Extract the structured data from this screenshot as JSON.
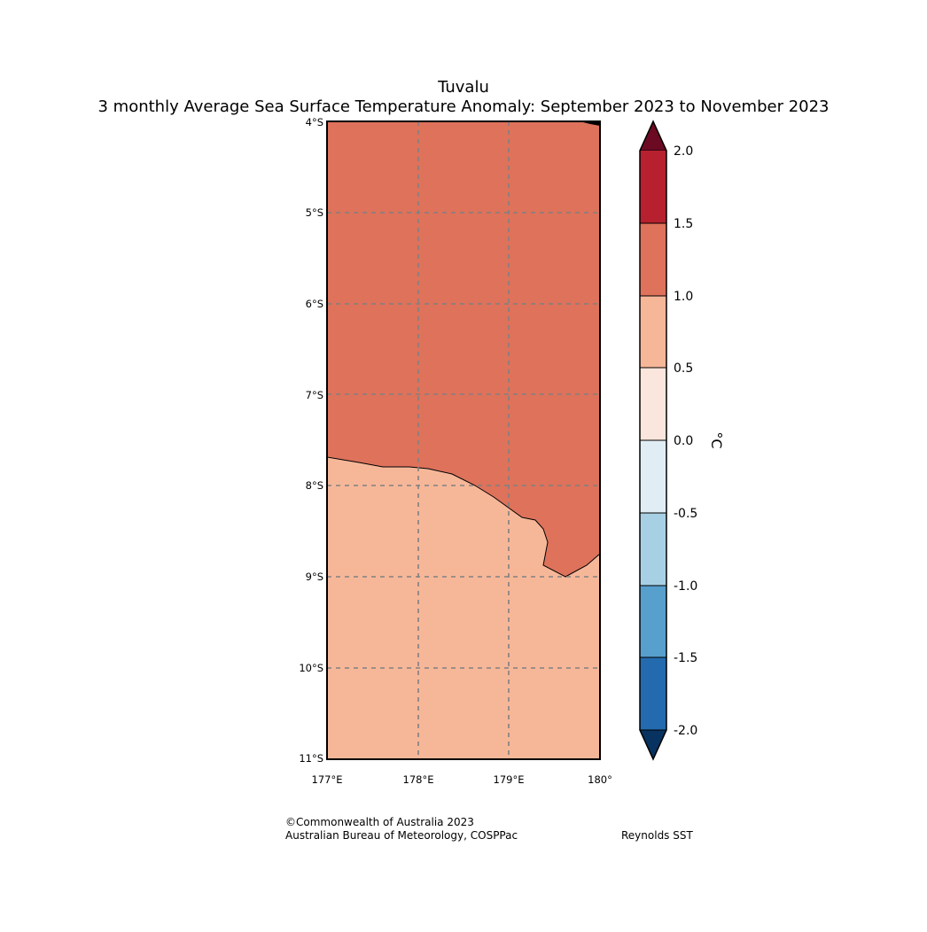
{
  "title": {
    "line1": "Tuvalu",
    "line2": "3 monthly Average Sea Surface Temperature Anomaly: September 2023 to November 2023"
  },
  "map": {
    "lat_ticks": [
      "4°S",
      "5°S",
      "6°S",
      "7°S",
      "8°S",
      "9°S",
      "10°S",
      "11°S"
    ],
    "lon_ticks": [
      "177°E",
      "178°E",
      "179°E",
      "180°"
    ],
    "extent": {
      "lon": [
        177,
        180
      ],
      "lat": [
        -11,
        -4
      ]
    },
    "regions": [
      {
        "name": "anomaly-1.0-to-1.5",
        "color": "#de725b"
      },
      {
        "name": "anomaly-0.5-to-1.0",
        "color": "#f6b799"
      }
    ]
  },
  "colorbar": {
    "label": "°C",
    "ticks": [
      "2.0",
      "1.5",
      "1.0",
      "0.5",
      "0.0",
      "-0.5",
      "-1.0",
      "-1.5",
      "-2.0"
    ],
    "colors": [
      "#6b0a22",
      "#b7202e",
      "#de725b",
      "#f6b799",
      "#fae6dc",
      "#e1edf4",
      "#a8d0e4",
      "#579fcd",
      "#236bae",
      "#08325f"
    ]
  },
  "footer": {
    "copyright": "©Commonwealth of Australia 2023",
    "agency": "Australian Bureau of Meteorology, COSPPac",
    "source": "Reynolds SST"
  }
}
